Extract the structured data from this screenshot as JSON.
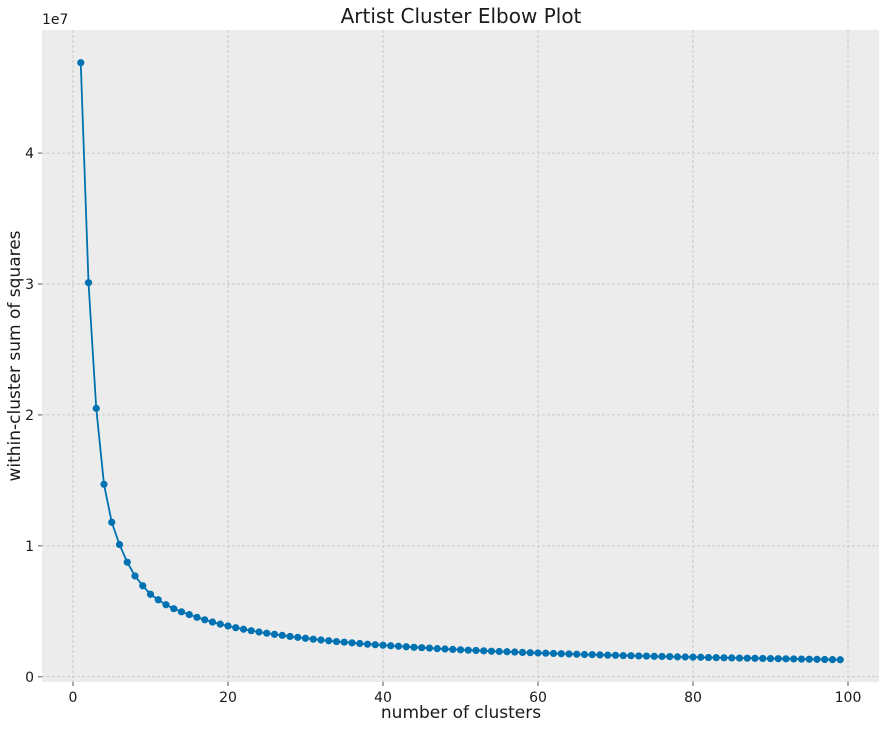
{
  "chart_data": {
    "type": "line",
    "title": "Artist Cluster Elbow Plot",
    "xlabel": "number of clusters",
    "ylabel": "within-cluster sum of squares",
    "offset_label": "1e7",
    "y_scale": 10000000,
    "xlim": [
      -4,
      104
    ],
    "ylim": [
      -400000,
      49400000
    ],
    "x_ticks": [
      0,
      20,
      40,
      60,
      80,
      100
    ],
    "y_ticks": [
      0,
      10000000,
      20000000,
      30000000,
      40000000
    ],
    "y_tick_labels": [
      "0",
      "1",
      "2",
      "3",
      "4"
    ],
    "grid": true,
    "background": "#ececec",
    "series": [
      {
        "color": "#0072b2",
        "marker": "circle",
        "x": [
          1,
          2,
          3,
          4,
          5,
          6,
          7,
          8,
          9,
          10,
          11,
          12,
          13,
          14,
          15,
          16,
          17,
          18,
          19,
          20,
          21,
          22,
          23,
          24,
          25,
          26,
          27,
          28,
          29,
          30,
          31,
          32,
          33,
          34,
          35,
          36,
          37,
          38,
          39,
          40,
          41,
          42,
          43,
          44,
          45,
          46,
          47,
          48,
          49,
          50,
          51,
          52,
          53,
          54,
          55,
          56,
          57,
          58,
          59,
          60,
          61,
          62,
          63,
          64,
          65,
          66,
          67,
          68,
          69,
          70,
          71,
          72,
          73,
          74,
          75,
          76,
          77,
          78,
          79,
          80,
          81,
          82,
          83,
          84,
          85,
          86,
          87,
          88,
          89,
          90,
          91,
          92,
          93,
          94,
          95,
          96,
          97,
          98,
          99
        ],
        "y": [
          46900000,
          30100000,
          20500000,
          14700000,
          11800000,
          10100000,
          8750000,
          7700000,
          6950000,
          6300000,
          5880000,
          5500000,
          5200000,
          4960000,
          4750000,
          4540000,
          4350000,
          4180000,
          4020000,
          3880000,
          3750000,
          3630000,
          3520000,
          3420000,
          3330000,
          3240000,
          3160000,
          3080000,
          3010000,
          2940000,
          2870000,
          2810000,
          2750000,
          2690000,
          2640000,
          2590000,
          2540000,
          2490000,
          2450000,
          2410000,
          2370000,
          2330000,
          2290000,
          2250000,
          2220000,
          2190000,
          2150000,
          2120000,
          2090000,
          2060000,
          2030000,
          2010000,
          1980000,
          1950000,
          1930000,
          1910000,
          1890000,
          1860000,
          1840000,
          1820000,
          1800000,
          1780000,
          1760000,
          1740000,
          1720000,
          1700000,
          1690000,
          1670000,
          1650000,
          1640000,
          1620000,
          1610000,
          1590000,
          1580000,
          1560000,
          1550000,
          1540000,
          1520000,
          1510000,
          1500000,
          1490000,
          1470000,
          1460000,
          1450000,
          1440000,
          1430000,
          1420000,
          1410000,
          1400000,
          1390000,
          1380000,
          1370000,
          1360000,
          1350000,
          1340000,
          1330000,
          1320000,
          1310000,
          1300000
        ]
      }
    ]
  }
}
